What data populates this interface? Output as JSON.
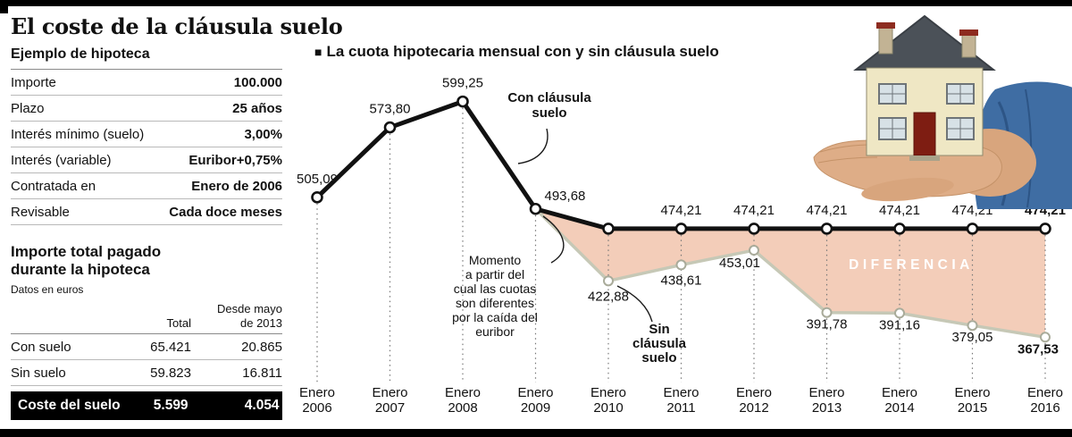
{
  "page": {
    "title": "El coste de la cláusula suelo"
  },
  "mortgage_example": {
    "title": "Ejemplo de hipoteca",
    "rows": [
      {
        "label": "Importe",
        "value": "100.000"
      },
      {
        "label": "Plazo",
        "value": "25 años"
      },
      {
        "label": "Interés mínimo (suelo)",
        "value": "3,00%"
      },
      {
        "label": "Interés (variable)",
        "value": "Euribor+0,75%"
      },
      {
        "label": "Contratada en",
        "value": "Enero de 2006"
      },
      {
        "label": "Revisable",
        "value": "Cada doce meses"
      }
    ]
  },
  "totals": {
    "title_line1": "Importe total pagado",
    "title_line2": "durante la hipoteca",
    "note": "Datos en euros",
    "col_total": "Total",
    "col_since_line1": "Desde mayo",
    "col_since_line2": "de 2013",
    "rows": [
      {
        "label": "Con suelo",
        "total": "65.421",
        "since": "20.865"
      },
      {
        "label": "Sin suelo",
        "total": "59.823",
        "since": "16.811"
      }
    ],
    "footer": {
      "label": "Coste del suelo",
      "total": "5.599",
      "since": "4.054"
    }
  },
  "chart": {
    "bullet": "■",
    "title": "La cuota hipotecaria mensual con y sin cláusula suelo",
    "con_callout_lines": [
      "Con cláusula",
      "suelo"
    ],
    "sin_callout_lines": [
      "Sin",
      "cláusula",
      "suelo"
    ],
    "annotation_lines": [
      "Momento",
      "a partir del",
      "cual las cuotas",
      "son diferentes",
      "por la caída del",
      "euribor"
    ],
    "difference_label": "DIFERENCIA",
    "colors": {
      "con_line": "#111111",
      "sin_line": "#c6c8b6",
      "area": "#f3cdb9",
      "text": "#111111"
    }
  },
  "chart_data": {
    "type": "line",
    "x": [
      "Enero 2006",
      "Enero 2007",
      "Enero 2008",
      "Enero 2009",
      "Enero 2010",
      "Enero 2011",
      "Enero 2012",
      "Enero 2013",
      "Enero 2014",
      "Enero 2015",
      "Enero 2016"
    ],
    "series": [
      {
        "name": "Con cláusula suelo",
        "values": [
          505.09,
          573.8,
          599.25,
          493.68,
          474.21,
          474.21,
          474.21,
          474.21,
          474.21,
          474.21,
          474.21
        ],
        "labels": [
          "505,09",
          "573,80",
          "599,25",
          "493,68",
          null,
          "474,21",
          "474,21",
          "474,21",
          "474,21",
          "474,21",
          "474,21"
        ]
      },
      {
        "name": "Sin cláusula suelo",
        "values": [
          505.09,
          573.8,
          599.25,
          493.68,
          422.88,
          438.61,
          453.01,
          391.78,
          391.16,
          379.05,
          367.53
        ],
        "labels": [
          null,
          null,
          null,
          null,
          "422,88",
          "438,61",
          "453,01",
          "391,78",
          "391,16",
          "379,05",
          "367,53"
        ]
      }
    ],
    "ylim": [
      350,
      620
    ],
    "diverge_index": 3,
    "legend_position": "inline-callouts",
    "grid": "dotted-vertical"
  }
}
